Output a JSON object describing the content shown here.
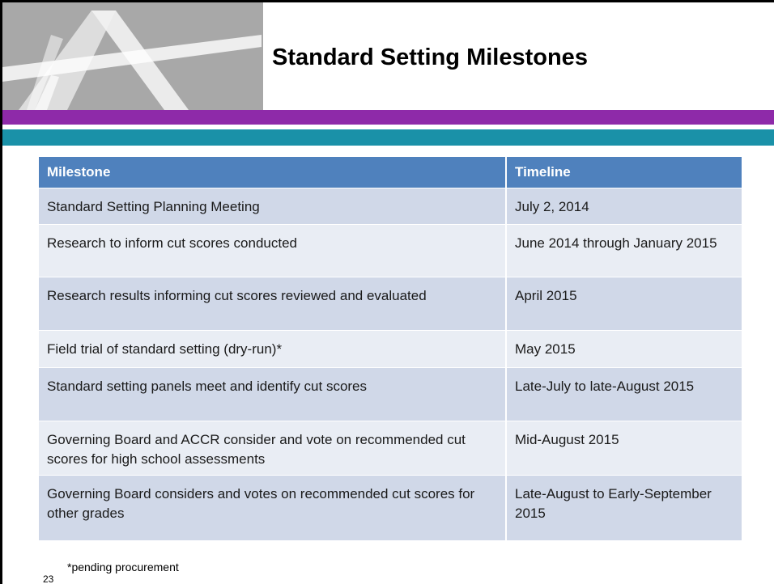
{
  "header": {
    "title": "Standard Setting Milestones"
  },
  "table": {
    "columns": [
      "Milestone",
      "Timeline"
    ],
    "rows": [
      [
        "Standard Setting Planning Meeting",
        "July 2, 2014"
      ],
      [
        "Research to inform cut scores conducted",
        "June 2014 through January 2015"
      ],
      [
        "Research results informing cut scores reviewed and evaluated",
        "April 2015"
      ],
      [
        "Field trial of standard setting (dry-run)*",
        "May 2015"
      ],
      [
        "Standard setting panels meet and identify cut scores",
        "Late-July to late-August 2015"
      ],
      [
        "Governing Board and ACCR consider and vote on recommended cut scores for high school assessments",
        "Mid-August 2015"
      ],
      [
        "Governing Board considers and votes on recommended cut scores for other grades",
        "Late-August to Early-September 2015"
      ]
    ]
  },
  "footer": {
    "page_number": "23",
    "note": "*pending procurement"
  }
}
